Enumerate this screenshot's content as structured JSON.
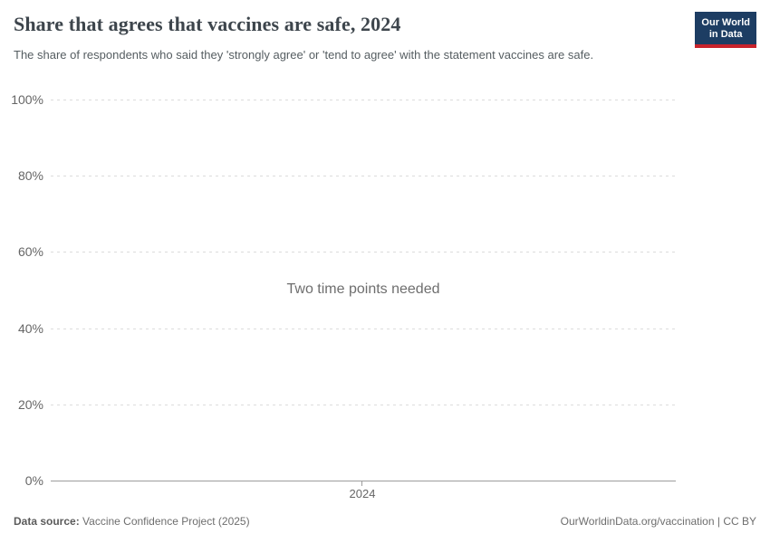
{
  "header": {
    "title": "Share that agrees that vaccines are safe, 2024",
    "subtitle": "The share of respondents who said they 'strongly agree' or 'tend to agree' with the statement vaccines are safe.",
    "logo": {
      "line1": "Our World",
      "line2": "in Data"
    }
  },
  "chart_data": {
    "type": "line",
    "title": "Share that agrees that vaccines are safe, 2024",
    "series": [],
    "empty_state_message": "Two time points needed",
    "x_tick_labels": [
      "2024"
    ],
    "y_tick_labels_top_to_bottom": [
      "100%",
      "80%",
      "60%",
      "40%",
      "20%",
      "0%"
    ],
    "ylim": [
      0,
      100
    ],
    "grid": true,
    "legend": "none"
  },
  "footer": {
    "datasource_label": "Data source:",
    "datasource_value": " Vaccine Confidence Project (2025)",
    "right_text": "OurWorldinData.org/vaccination | CC BY"
  },
  "colors": {
    "logo_background": "#1d3d63",
    "logo_stripe": "#c8232c",
    "gridline": "#dcdcdc",
    "axis_line": "#9c9c9c",
    "tick_label": "#666666",
    "title_text": "#3d454c",
    "subtitle_text": "#555d61",
    "footer_text": "#6e6e6e",
    "message_text": "#6e6e6e"
  }
}
